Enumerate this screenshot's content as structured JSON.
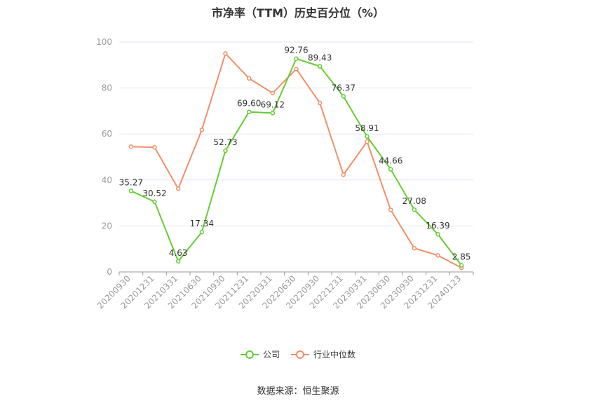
{
  "chart_data": {
    "type": "line",
    "title": "市净率（TTM）历史百分位（%）",
    "categories": [
      "20200930",
      "20201231",
      "20210331",
      "20210630",
      "20210930",
      "20211231",
      "20220331",
      "20220630",
      "20220930",
      "20221231",
      "20230331",
      "20230630",
      "20230930",
      "20231231",
      "20240123"
    ],
    "series": [
      {
        "name": "公司",
        "color": "#66cc33",
        "values": [
          35.27,
          30.52,
          4.63,
          17.34,
          52.73,
          69.6,
          69.12,
          92.76,
          89.43,
          76.37,
          58.91,
          44.66,
          27.08,
          16.39,
          2.85
        ],
        "labels": [
          "35.27",
          "30.52",
          "4.63",
          "17.34",
          "52.73",
          "69.60",
          "69.12",
          "92.76",
          "89.43",
          "76.37",
          "58.91",
          "44.66",
          "27.08",
          "16.39",
          "2.85"
        ]
      },
      {
        "name": "行业中位数",
        "color": "#f0906a",
        "values": [
          54.5,
          54.2,
          36.2,
          61.8,
          95.0,
          84.2,
          77.8,
          88.3,
          73.5,
          42.3,
          56.7,
          27.0,
          10.3,
          7.2,
          1.8
        ]
      }
    ],
    "ylim": [
      0,
      100
    ],
    "yticks": [
      "0",
      "20",
      "40",
      "60",
      "80",
      "100"
    ],
    "grid": true,
    "legend_position": "bottom"
  },
  "source": "数据来源：恒生聚源"
}
